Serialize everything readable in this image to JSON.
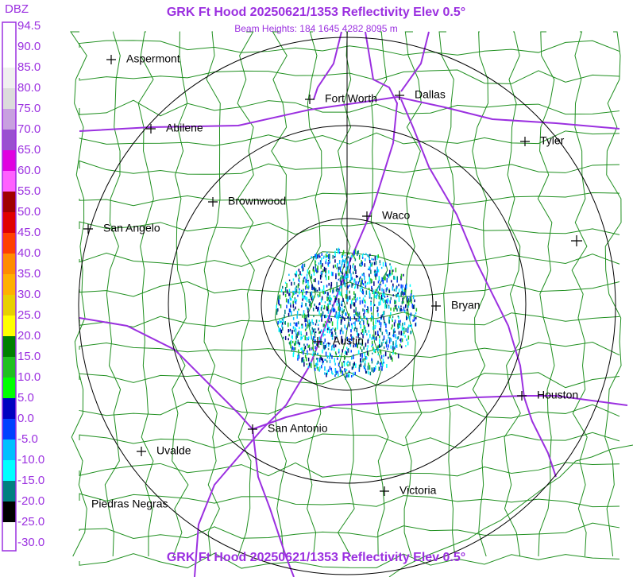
{
  "header": {
    "title": "GRK Ft Hood 20250621/1353 Reflectivity Elev 0.5°",
    "subtitle": "Beam Heights: 184 1645 4282 8095 m"
  },
  "footer": {
    "title": "GRK Ft Hood 20250621/1353 Reflectivity Elev 0.5°"
  },
  "legend": {
    "unit": "DBZ",
    "labels": [
      "94.5",
      "90.0",
      "85.0",
      "80.0",
      "75.0",
      "70.0",
      "65.0",
      "60.0",
      "55.0",
      "50.0",
      "45.0",
      "40.0",
      "35.0",
      "30.0",
      "25.0",
      "20.0",
      "15.0",
      "10.0",
      "5.0",
      "0.0",
      "-5.0",
      "-10.0",
      "-15.0",
      "-20.0",
      "-25.0",
      "-30.0"
    ],
    "colors": [
      "#ffffff",
      "#ffffff",
      "#f0f0f0",
      "#dcdcdc",
      "#c8a0e0",
      "#9a50d0",
      "#e000e0",
      "#ff60ff",
      "#a00000",
      "#e00000",
      "#ff4000",
      "#ff8c00",
      "#ffb000",
      "#e8d000",
      "#ffff00",
      "#008000",
      "#20c020",
      "#00ff00",
      "#0000c0",
      "#0040ff",
      "#00c0ff",
      "#00ffff",
      "#008080",
      "#000000",
      "#ffffff"
    ]
  },
  "cities": [
    "Aspermont",
    "Fort Worth",
    "Dallas",
    "Abilene",
    "Tyler",
    "Brownwood",
    "Waco",
    "San Angelo",
    "Bryan",
    "Austin",
    "Houston",
    "San Antonio",
    "Uvalde",
    "Piedras Negras",
    "Victoria"
  ]
}
